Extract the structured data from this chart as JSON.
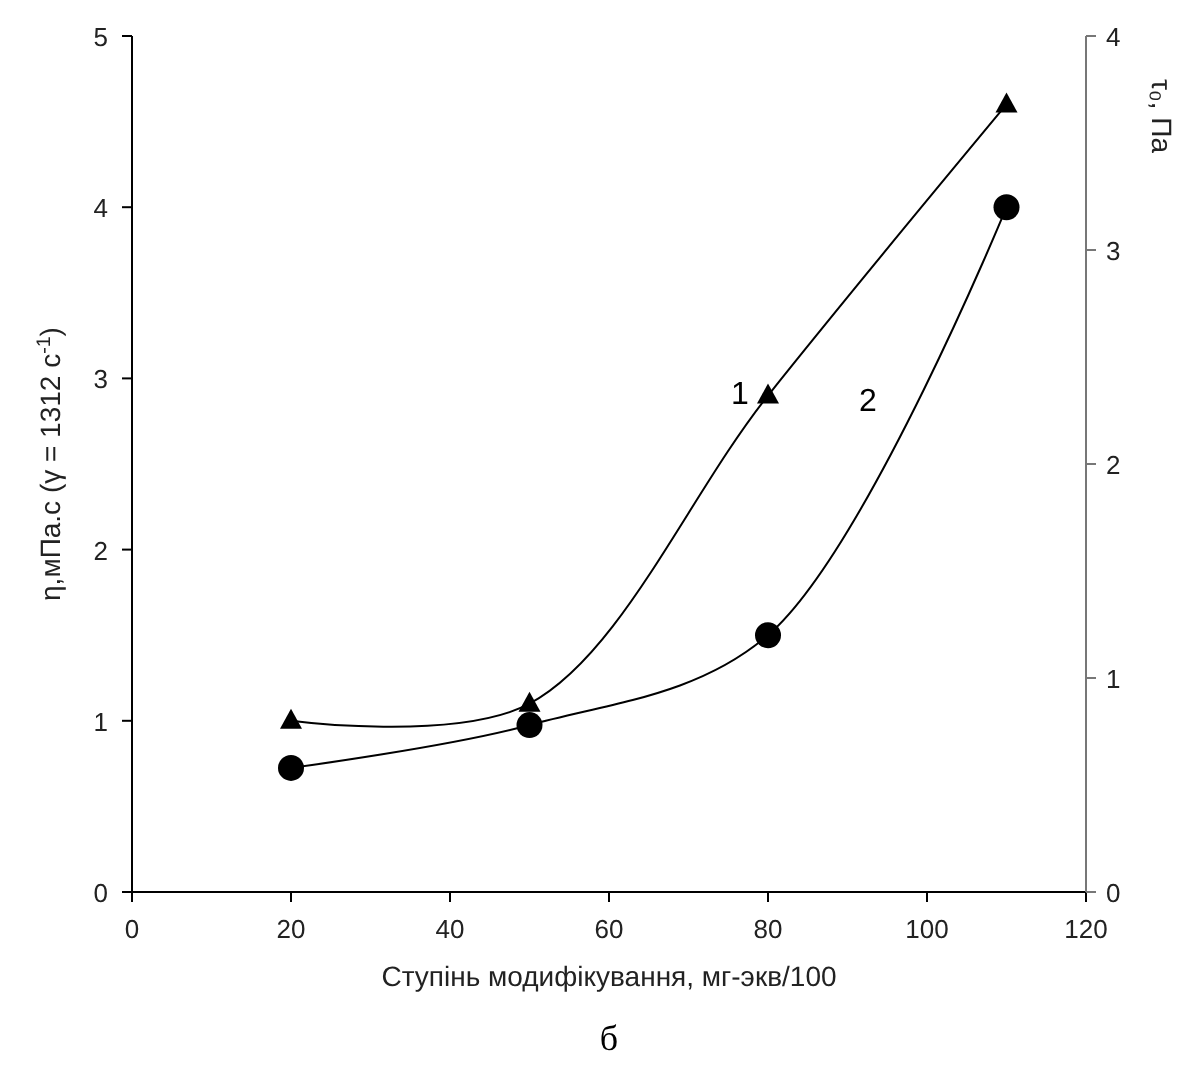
{
  "chart_data": {
    "type": "line",
    "xlabel": "Ступінь модифікування, мг-экв/100",
    "ylabel": "η,мПа.с (γ = 1312 с$^{-1}$)",
    "y2label": "τ₀, Па",
    "x": [
      20,
      50,
      80,
      110
    ],
    "series": [
      {
        "name": "1",
        "color": "#000000",
        "values": [
          1.0,
          1.1,
          2.9,
          4.6
        ],
        "marker": "triangle"
      },
      {
        "name": "2",
        "color": "#000000",
        "values": [
          0.58,
          0.78,
          1.2,
          3.2
        ],
        "marker": "circle",
        "axis": "y2"
      }
    ],
    "xlim": [
      0,
      120
    ],
    "xticks": [
      0,
      20,
      40,
      60,
      80,
      100,
      120
    ],
    "ylim": [
      0,
      5
    ],
    "yticks": [
      0,
      1,
      2,
      3,
      4,
      5
    ],
    "y2lim": [
      0,
      4
    ],
    "y2ticks": [
      0,
      1,
      2,
      3,
      4
    ],
    "grid": false,
    "annotations": [
      "б"
    ]
  }
}
